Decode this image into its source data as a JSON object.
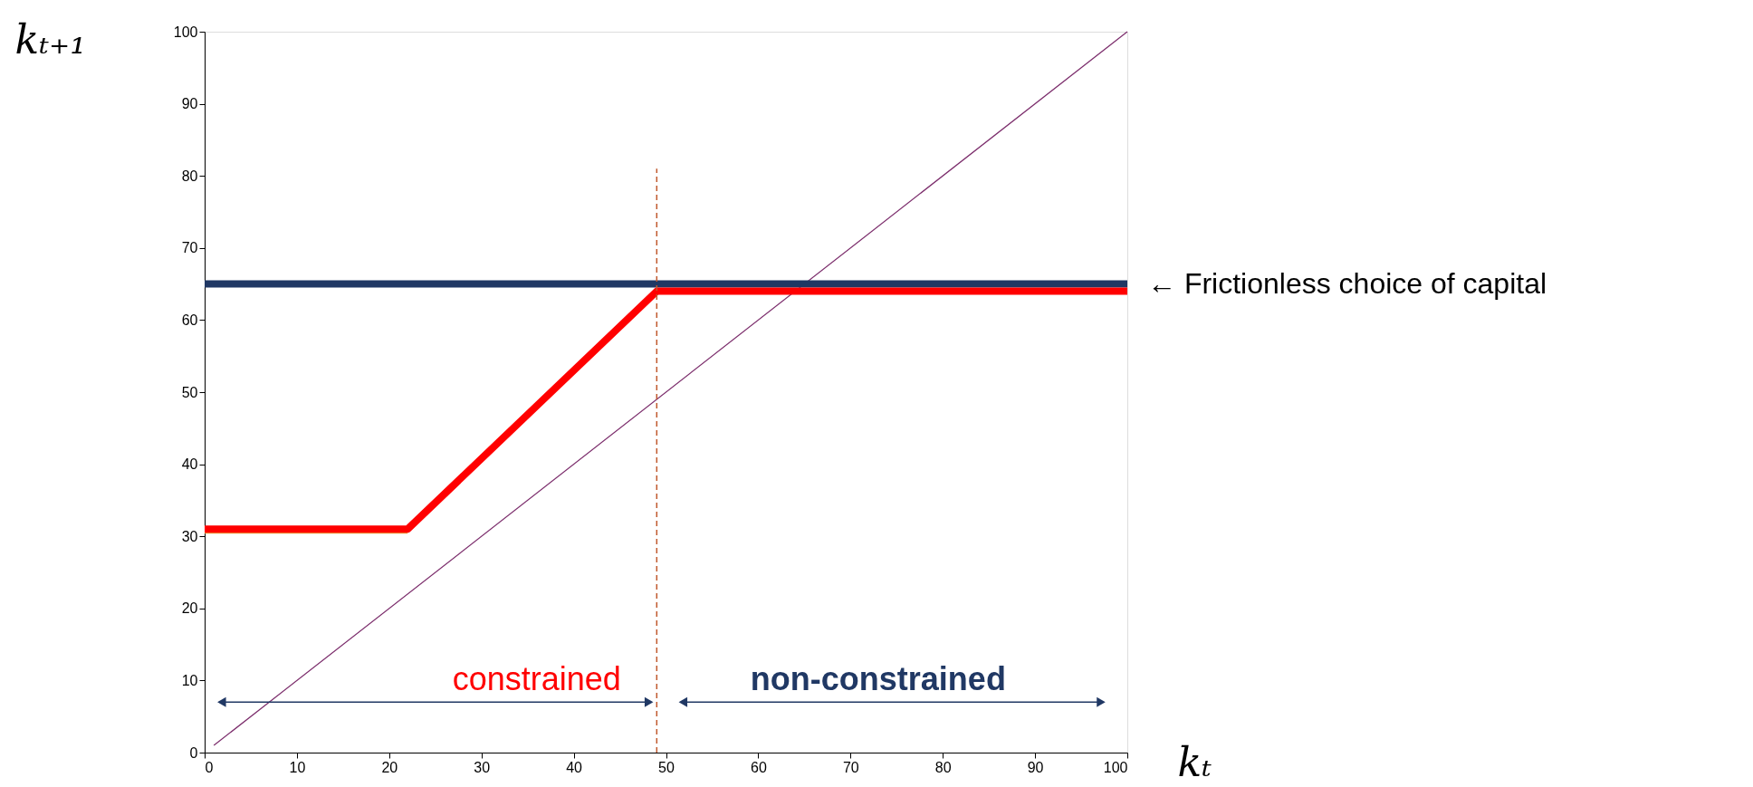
{
  "chart_data": {
    "type": "line",
    "xlabel": "kₜ",
    "ylabel": "kₜ₊₁",
    "xlim": [
      0,
      100
    ],
    "ylim": [
      0,
      100
    ],
    "xticks": [
      0,
      10,
      20,
      30,
      40,
      50,
      60,
      70,
      80,
      90,
      100
    ],
    "yticks": [
      0,
      10,
      20,
      30,
      40,
      50,
      60,
      70,
      80,
      90,
      100
    ],
    "series": [
      {
        "color": "#7b2c6b",
        "x": [
          1,
          100
        ],
        "values": [
          1,
          100
        ]
      },
      {
        "color": "#e8a33d",
        "x": [
          0,
          22
        ],
        "values": [
          30.5,
          30.5
        ]
      },
      {
        "color": "#203864",
        "x": [
          0,
          100
        ],
        "values": [
          65,
          65
        ]
      },
      {
        "color": "#ff0000",
        "x": [
          0,
          22,
          49,
          100
        ],
        "values": [
          31,
          31,
          64,
          64
        ]
      },
      {
        "color": "#c0582d",
        "line_style": "dashed",
        "x": [
          49,
          49
        ],
        "values": [
          0,
          81
        ]
      },
      {
        "color": "#203864",
        "marker": "triangle",
        "x": [
          2,
          48
        ],
        "values": [
          7,
          7
        ]
      },
      {
        "color": "#203864",
        "marker": "triangle",
        "x": [
          52,
          97
        ],
        "values": [
          7,
          7
        ]
      }
    ],
    "annotations": [
      "constrained",
      "non-constrained",
      {
        "text": "← Frictionless choice of capital",
        "x": 100,
        "y": 65
      }
    ]
  }
}
